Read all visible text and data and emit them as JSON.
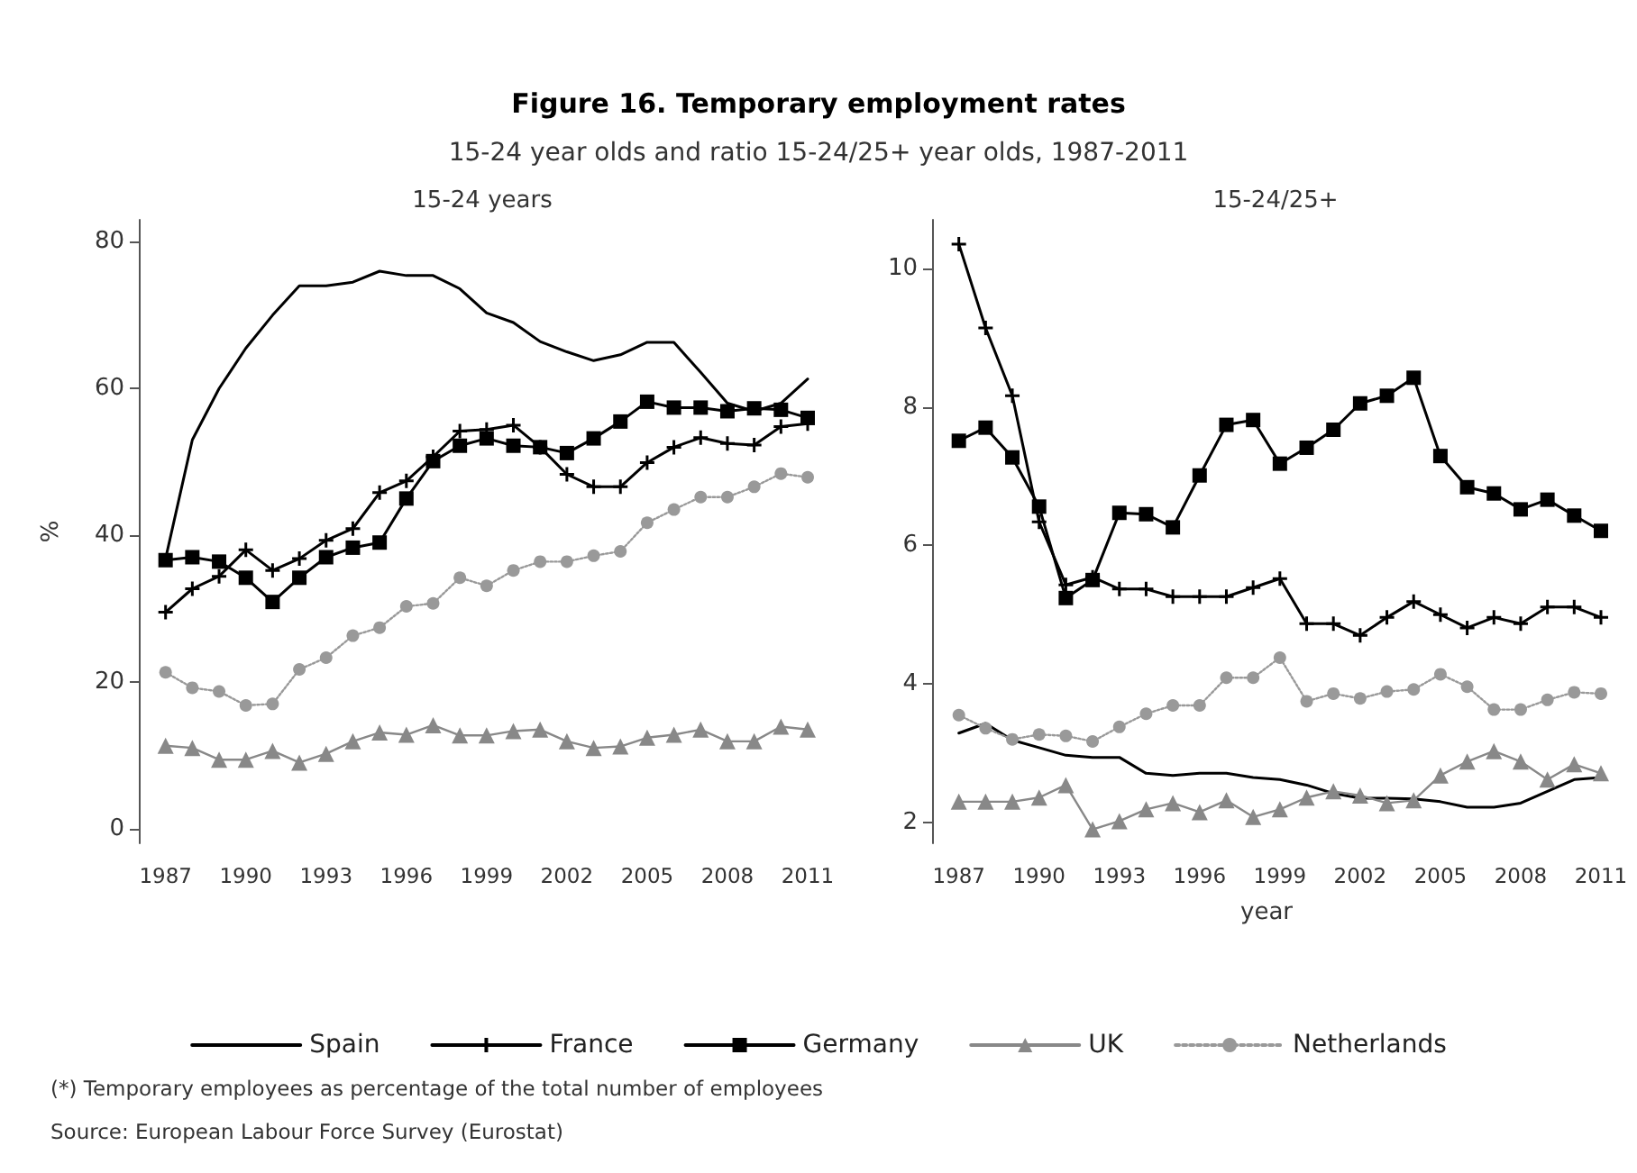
{
  "chart_data": [
    {
      "type": "line",
      "title": "15-24 years",
      "ylabel": "%",
      "legend": "bottom",
      "annotations": [
        "Figure 16. Temporary employment rates",
        "15-24 year olds and ratio 15-24/25+ year olds, 1987-2011",
        "(*) Temporary employees as percentage of the total number of employees",
        "Source: European Labour Force Survey (Eurostat)"
      ],
      "x": [
        1987,
        1988,
        1989,
        1990,
        1991,
        1992,
        1993,
        1994,
        1995,
        1996,
        1997,
        1998,
        1999,
        2000,
        2001,
        2002,
        2003,
        2004,
        2005,
        2006,
        2007,
        2008,
        2009,
        2010,
        2011
      ],
      "xlim": [
        1986,
        2011
      ],
      "xticks": [
        1987,
        1990,
        1993,
        1996,
        1999,
        2002,
        2005,
        2008,
        2011
      ],
      "ylim": [
        -2,
        83
      ],
      "yticks": [
        0,
        20,
        40,
        60,
        80
      ],
      "series": [
        {
          "name": "Spain",
          "color": "#000000",
          "marker": "none",
          "line_style": "solid",
          "values": [
            36.8,
            53,
            60,
            65.5,
            70,
            74,
            74,
            74.5,
            76,
            75.4,
            75.4,
            73.6,
            70.3,
            69,
            66.4,
            65,
            63.8,
            64.6,
            66.3,
            66.3,
            62.2,
            58,
            56.9,
            58,
            61.3
          ]
        },
        {
          "name": "France",
          "color": "#000000",
          "marker": "cross",
          "line_style": "solid",
          "values": [
            29.5,
            32.7,
            34.4,
            38,
            35.2,
            36.8,
            39.3,
            40.9,
            45.8,
            47.4,
            50.7,
            54.2,
            54.4,
            55,
            52,
            48.3,
            46.6,
            46.6,
            49.9,
            52,
            53.3,
            52.5,
            52.3,
            54.8,
            55.2
          ]
        },
        {
          "name": "Germany",
          "color": "#000000",
          "marker": "square",
          "line_style": "solid",
          "values": [
            36.6,
            37,
            36.4,
            34.2,
            30.9,
            34.2,
            37,
            38.3,
            39,
            45,
            50.1,
            52.2,
            53.2,
            52.2,
            52,
            51.2,
            53.2,
            55.5,
            58.2,
            57.4,
            57.4,
            56.9,
            57.3,
            57.1,
            56
          ]
        },
        {
          "name": "UK",
          "color": "#888888",
          "marker": "triangle",
          "line_style": "solid",
          "values": [
            11.3,
            11,
            9.4,
            9.4,
            10.6,
            9,
            10.2,
            11.9,
            13.1,
            12.8,
            14.1,
            12.7,
            12.7,
            13.3,
            13.5,
            11.9,
            11,
            11.2,
            12.4,
            12.8,
            13.5,
            11.9,
            11.9,
            13.9,
            13.5
          ]
        },
        {
          "name": "Netherlands",
          "color": "#999999",
          "marker": "circle",
          "line_style": "dotted",
          "values": [
            21.3,
            19.2,
            18.7,
            16.8,
            17,
            21.7,
            23.3,
            26.3,
            27.4,
            30.3,
            30.7,
            34.2,
            33.1,
            35.2,
            36.4,
            36.4,
            37.2,
            37.8,
            41.7,
            43.5,
            45.2,
            45.2,
            46.6,
            48.4,
            47.9
          ]
        }
      ]
    },
    {
      "type": "line",
      "title": "15-24/25+",
      "xlabel": "year",
      "x": [
        1987,
        1988,
        1989,
        1990,
        1991,
        1992,
        1993,
        1994,
        1995,
        1996,
        1997,
        1998,
        1999,
        2000,
        2001,
        2002,
        2003,
        2004,
        2005,
        2006,
        2007,
        2008,
        2009,
        2010,
        2011
      ],
      "xlim": [
        1986,
        2011
      ],
      "xticks": [
        1987,
        1990,
        1993,
        1996,
        1999,
        2002,
        2005,
        2008,
        2011
      ],
      "ylim": [
        1.7,
        10.7
      ],
      "yticks": [
        2,
        4,
        6,
        8,
        10
      ],
      "series": [
        {
          "color": "#000000",
          "marker": "none",
          "line_style": "solid",
          "values": [
            3.29,
            3.43,
            3.19,
            3.08,
            2.97,
            2.94,
            2.94,
            2.71,
            2.68,
            2.71,
            2.71,
            2.65,
            2.62,
            2.54,
            2.42,
            2.35,
            2.35,
            2.34,
            2.3,
            2.22,
            2.22,
            2.28,
            2.45,
            2.62,
            2.65
          ]
        },
        {
          "color": "#000000",
          "marker": "cross",
          "line_style": "solid",
          "values": [
            10.35,
            9.14,
            8.16,
            6.34,
            5.43,
            5.54,
            5.37,
            5.37,
            5.26,
            5.26,
            5.26,
            5.39,
            5.52,
            4.87,
            4.87,
            4.7,
            4.96,
            5.19,
            5,
            4.81,
            4.96,
            4.87,
            5.11,
            5.11,
            4.96
          ]
        },
        {
          "color": "#000000",
          "marker": "square",
          "line_style": "solid",
          "values": [
            7.51,
            7.7,
            7.27,
            6.56,
            5.24,
            5.5,
            6.47,
            6.45,
            6.26,
            7.01,
            7.74,
            7.81,
            7.18,
            7.41,
            7.67,
            8.05,
            8.16,
            8.42,
            7.29,
            6.84,
            6.75,
            6.52,
            6.66,
            6.43,
            6.21
          ]
        },
        {
          "color": "#888888",
          "marker": "triangle",
          "line_style": "solid",
          "values": [
            2.3,
            2.3,
            2.3,
            2.36,
            2.54,
            1.9,
            2.02,
            2.19,
            2.28,
            2.15,
            2.32,
            2.08,
            2.19,
            2.36,
            2.45,
            2.39,
            2.28,
            2.32,
            2.68,
            2.88,
            3.03,
            2.88,
            2.62,
            2.84,
            2.71
          ]
        },
        {
          "color": "#999999",
          "marker": "circle",
          "line_style": "dotted",
          "values": [
            3.55,
            3.36,
            3.2,
            3.27,
            3.25,
            3.17,
            3.38,
            3.57,
            3.69,
            3.69,
            4.09,
            4.09,
            4.38,
            3.75,
            3.86,
            3.79,
            3.89,
            3.92,
            4.14,
            3.96,
            3.63,
            3.63,
            3.77,
            3.88,
            3.86
          ]
        }
      ]
    }
  ]
}
